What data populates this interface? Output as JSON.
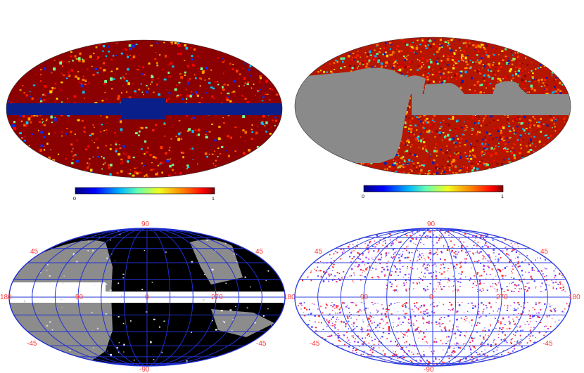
{
  "panels": [
    {
      "position_label": "top-left",
      "type": "mollweide-map",
      "colormap": "jet",
      "colorbar": {
        "min_label": "0",
        "max_label": "1"
      },
      "masked_region": "galactic plane band"
    },
    {
      "position_label": "top-right",
      "type": "mollweide-map",
      "colormap": "jet",
      "colorbar": {
        "min_label": "0",
        "max_label": "1"
      },
      "masked_region": "gray sky region"
    },
    {
      "position_label": "bottom-left",
      "type": "mollweide-grid-map",
      "colors": {
        "background": "#000000",
        "mask": "#8c8c8c",
        "plane": "#ffffff",
        "grid": "#1f2fd0"
      },
      "grid_labels": {
        "top": "90",
        "bottom": "-90",
        "left": "180",
        "right": "180",
        "upper_left": "45",
        "upper_right": "45",
        "lower_left": "-45",
        "lower_right": "-45",
        "lon_90": "90",
        "lon_0": "0",
        "lon_270": "270"
      }
    },
    {
      "position_label": "bottom-right",
      "type": "mollweide-grid-map",
      "colors": {
        "background": "#ffffff",
        "points_a": "#ff2a2a",
        "points_b": "#5a3cff",
        "grid": "#1f2fd0"
      },
      "grid_labels": {
        "top": "90",
        "bottom": "-90",
        "left": "180",
        "right": "180",
        "upper_left": "45",
        "upper_right": "45",
        "lower_left": "-45",
        "lower_right": "-45",
        "lon_90": "90",
        "lon_0": "0",
        "lon_270": "270"
      }
    }
  ]
}
